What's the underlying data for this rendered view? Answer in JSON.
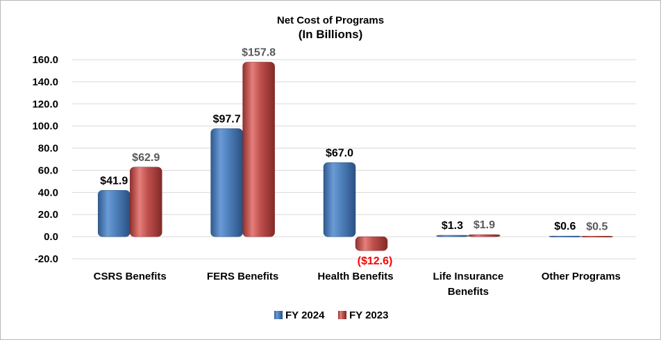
{
  "chart_data": {
    "type": "bar",
    "title": "Net Cost of Programs",
    "subtitle": "(In Billions)",
    "categories": [
      [
        "CSRS Benefits"
      ],
      [
        "FERS Benefits"
      ],
      [
        "Health Benefits"
      ],
      [
        "Life Insurance",
        "Benefits"
      ],
      [
        "Other Programs"
      ]
    ],
    "series": [
      {
        "name": "FY 2024",
        "values": [
          41.9,
          97.7,
          67.0,
          1.3,
          0.6
        ],
        "labels": [
          "$41.9",
          "$97.7",
          "$67.0",
          "$1.3",
          "$0.6"
        ],
        "color": "#4f81bd",
        "label_color": "#000000"
      },
      {
        "name": "FY 2023",
        "values": [
          62.9,
          157.8,
          -12.6,
          1.9,
          0.5
        ],
        "labels": [
          "$62.9",
          "$157.8",
          "($12.6)",
          "$1.9",
          "$0.5"
        ],
        "color": "#c0504d",
        "label_color": "#595959",
        "negative_label_color": "#ff0000"
      }
    ],
    "ylim": [
      -20,
      160
    ],
    "yticks": [
      "160.0",
      "140.0",
      "120.0",
      "100.0",
      "80.0",
      "60.0",
      "40.0",
      "20.0",
      "0.0",
      "-20.0"
    ],
    "ytick_values": [
      160,
      140,
      120,
      100,
      80,
      60,
      40,
      20,
      0,
      -20
    ],
    "grid": true,
    "legend_position": "bottom"
  }
}
